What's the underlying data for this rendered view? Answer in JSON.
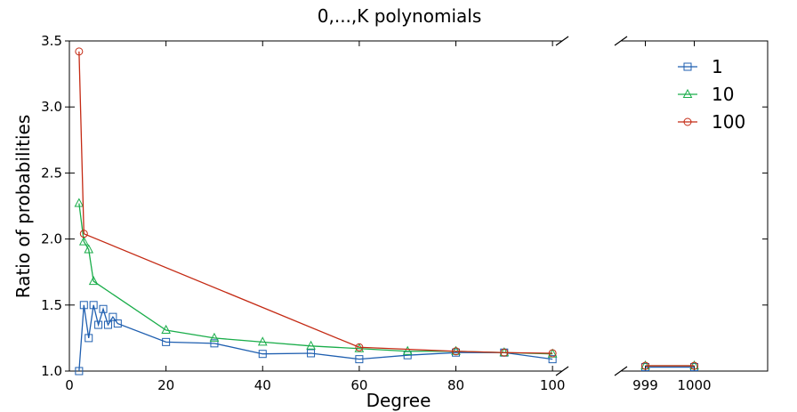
{
  "chart_data": {
    "type": "line",
    "title": "0,...,K polynomials",
    "xlabel": "Degree",
    "ylabel": "Ratio of probabilities",
    "ylim": [
      1.0,
      3.5
    ],
    "yticks": [
      "1.0",
      "1.5",
      "2.0",
      "2.5",
      "3.0",
      "3.5"
    ],
    "panels": [
      {
        "xlim": [
          0,
          102
        ],
        "xticks": [
          "0",
          "20",
          "40",
          "60",
          "80",
          "100"
        ]
      },
      {
        "xlim": [
          998.5,
          1001.5
        ],
        "xticks": [
          "999",
          "1000"
        ]
      }
    ],
    "legend_position": "top-right",
    "series": [
      {
        "name": "1",
        "color": "#1f5fb0",
        "marker": "square",
        "x": [
          2,
          3,
          4,
          5,
          6,
          7,
          8,
          9,
          10,
          20,
          30,
          40,
          50,
          60,
          70,
          80,
          90,
          100,
          999,
          1000
        ],
        "y": [
          1.0,
          1.5,
          1.25,
          1.5,
          1.35,
          1.47,
          1.35,
          1.41,
          1.36,
          1.22,
          1.21,
          1.13,
          1.135,
          1.09,
          1.12,
          1.14,
          1.14,
          1.09,
          1.03,
          1.03
        ]
      },
      {
        "name": "10",
        "color": "#1aad4a",
        "marker": "triangle",
        "x": [
          2,
          3,
          4,
          5,
          20,
          30,
          40,
          50,
          60,
          70,
          80,
          90,
          100,
          999,
          1000
        ],
        "y": [
          2.27,
          1.98,
          1.92,
          1.68,
          1.31,
          1.25,
          1.22,
          1.19,
          1.17,
          1.15,
          1.15,
          1.14,
          1.13,
          1.04,
          1.04
        ]
      },
      {
        "name": "100",
        "color": "#c42a14",
        "marker": "circle",
        "x": [
          2,
          3,
          60,
          80,
          90,
          100,
          999,
          1000
        ],
        "y": [
          3.42,
          2.04,
          1.18,
          1.15,
          1.14,
          1.135,
          1.04,
          1.04
        ]
      }
    ]
  }
}
